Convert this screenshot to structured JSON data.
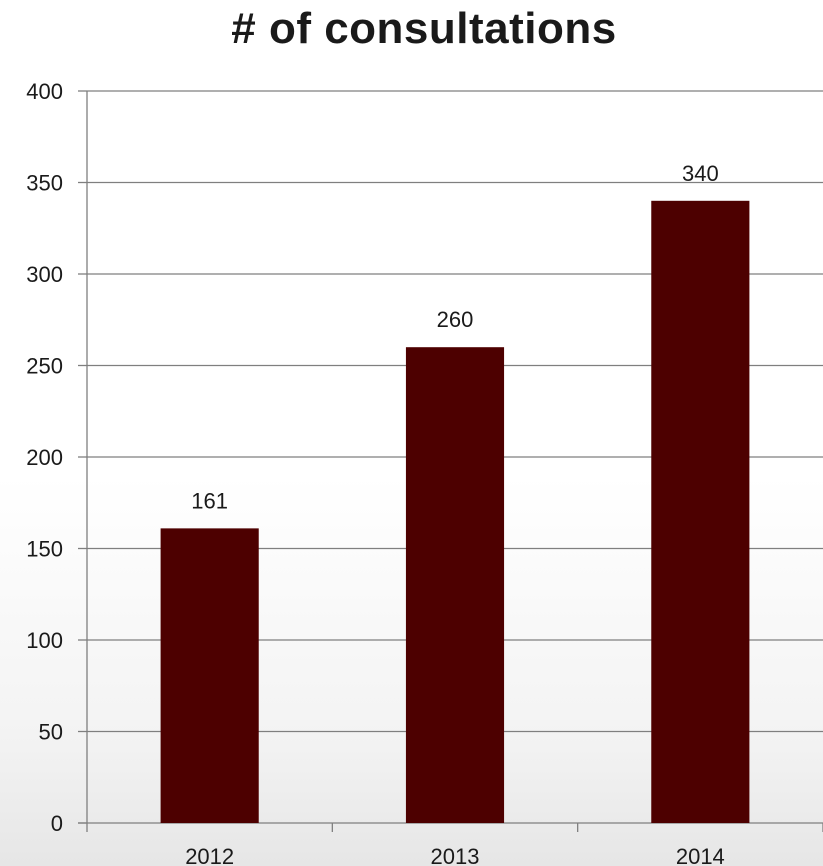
{
  "chart_data": {
    "type": "bar",
    "title": "# of consultations",
    "xlabel": "",
    "ylabel": "",
    "categories": [
      "2012",
      "2013",
      "2014"
    ],
    "values": [
      161,
      260,
      340
    ],
    "data_labels": [
      "161",
      "260",
      "340"
    ],
    "ylim": [
      0,
      400
    ],
    "yticks": [
      0,
      50,
      100,
      150,
      200,
      250,
      300,
      350,
      400
    ],
    "ytick_labels": [
      "0",
      "50",
      "100",
      "150",
      "200",
      "250",
      "300",
      "350",
      "400"
    ],
    "grid": true,
    "legend": "none",
    "bar_color": "#4d0000",
    "grid_color": "#7f7f7f"
  }
}
